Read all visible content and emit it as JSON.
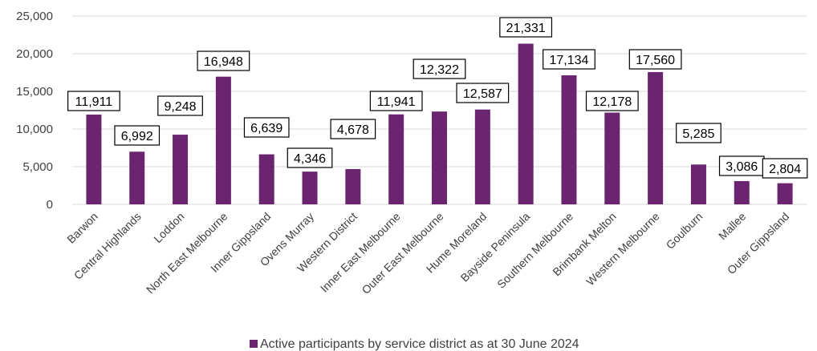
{
  "chart_data": {
    "type": "bar",
    "categories": [
      "Barwon",
      "Central Highlands",
      "Loddon",
      "North East Melbourne",
      "Inner Gippsland",
      "Ovens Murray",
      "Western District",
      "Inner East Melbourne",
      "Outer East Melbourne",
      "Hume Moreland",
      "Bayside Peninsula",
      "Southern Melbourne",
      "Brimbank Melton",
      "Western Melbourne",
      "Goulburn",
      "Mallee",
      "Outer Gippsland"
    ],
    "series": [
      {
        "name": "Active participants by service district as at 30 June 2024",
        "values": [
          11911,
          6992,
          9248,
          16948,
          6639,
          4346,
          4678,
          11941,
          12322,
          12587,
          21331,
          17134,
          12178,
          17560,
          5285,
          3086,
          2804
        ],
        "data_labels": [
          "11,911",
          "6,992",
          "9,248",
          "16,948",
          "6,639",
          "4,346",
          "4,678",
          "11,941",
          "12,322",
          "12,587",
          "21,331",
          "17,134",
          "12,178",
          "17,560",
          "5,285",
          "3,086",
          "2,804"
        ]
      }
    ],
    "y_ticks": [
      "0",
      "5,000",
      "10,000",
      "15,000",
      "20,000",
      "25,000"
    ],
    "ylim": [
      0,
      25000
    ],
    "grid": true,
    "legend_position": "bottom",
    "colors": {
      "bar": "#6b2470",
      "grid": "#d9d9d9"
    }
  }
}
